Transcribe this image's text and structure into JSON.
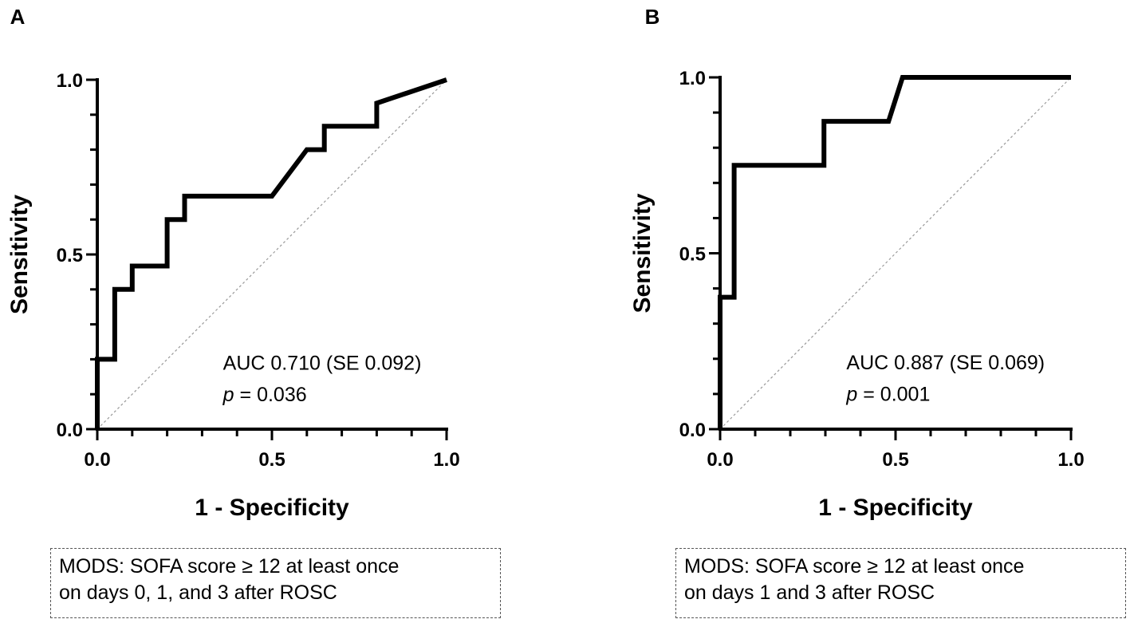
{
  "chart_data": [
    {
      "panel": "A",
      "type": "line",
      "xlabel": "1 - Specificity",
      "ylabel": "Sensitivity",
      "xlim": [
        0,
        1
      ],
      "ylim": [
        0,
        1
      ],
      "xticks": [
        "0.0",
        "0.5",
        "1.0"
      ],
      "yticks": [
        "0.0",
        "0.5",
        "1.0"
      ],
      "x": [
        0,
        0,
        0.05,
        0.05,
        0.1,
        0.1,
        0.2,
        0.2,
        0.25,
        0.25,
        0.5,
        0.6,
        0.65,
        0.65,
        0.8,
        0.8,
        1
      ],
      "y": [
        0,
        0.2,
        0.2,
        0.4,
        0.4,
        0.467,
        0.467,
        0.6,
        0.6,
        0.667,
        0.667,
        0.8,
        0.8,
        0.867,
        0.867,
        0.933,
        1
      ],
      "annotation": {
        "auc": "AUC 0.710 (SE 0.092)",
        "p_label": "p",
        "p_value": " = 0.036"
      },
      "caption": [
        "MODS: SOFA score ≥ 12 at least once",
        "on days 0, 1, and 3 after ROSC"
      ]
    },
    {
      "panel": "B",
      "type": "line",
      "xlabel": "1 - Specificity",
      "ylabel": "Sensitivity",
      "xlim": [
        0,
        1
      ],
      "ylim": [
        0,
        1
      ],
      "xticks": [
        "0.0",
        "0.5",
        "1.0"
      ],
      "yticks": [
        "0.0",
        "0.5",
        "1.0"
      ],
      "x": [
        0,
        0,
        0.04,
        0.04,
        0.296,
        0.296,
        0.48,
        0.52,
        1
      ],
      "y": [
        0,
        0.375,
        0.375,
        0.75,
        0.75,
        0.875,
        0.875,
        1,
        1
      ],
      "annotation": {
        "auc": "AUC 0.887 (SE 0.069)",
        "p_label": "p",
        "p_value": " = 0.001"
      },
      "caption": [
        "MODS: SOFA score ≥ 12 at least once",
        "on days 1 and 3 after ROSC"
      ]
    }
  ]
}
